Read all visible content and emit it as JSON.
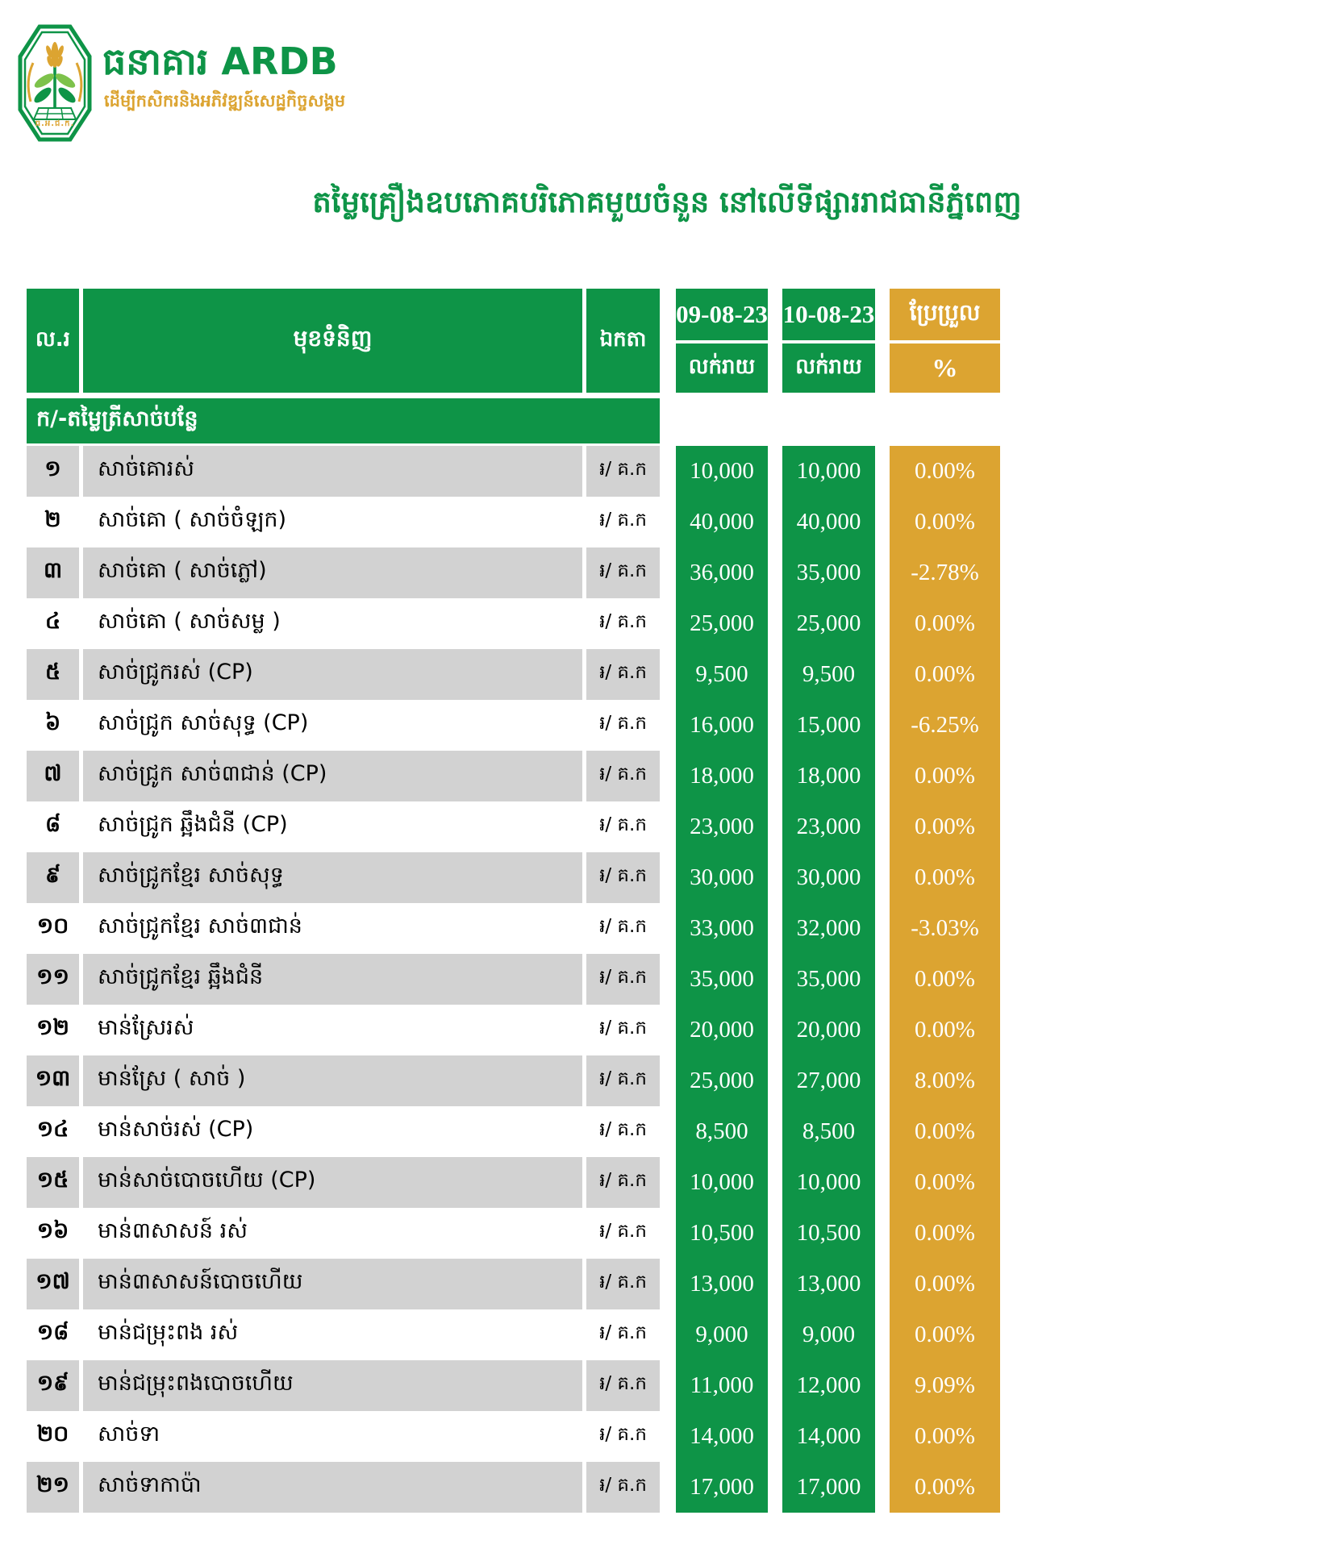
{
  "brand": {
    "full": "ធនាគារ ARDB",
    "tagline": "ដើម្បីកសិករនិងអភិវឌ្ឍន៍សេដ្ឋកិច្ចសង្គម",
    "emblem_abbr": "ធ.អ.ជ.ក."
  },
  "title": "តម្លៃគ្រឿងឧបភោគបរិភោគមួយចំនួន នៅលើទីផ្សាររាជធានីភ្នំពេញ",
  "colors": {
    "green": "#0E9447",
    "gold": "#DCA431",
    "row_grey": "#D2D2D2"
  },
  "table": {
    "headers": {
      "no": "ល.រ",
      "item": "មុខទំនិញ",
      "unit": "ឯកតា",
      "date1": "09-08-23",
      "date2": "10-08-23",
      "retail": "លក់រាយ",
      "change": "ប្រែប្រួល",
      "percent": "%"
    },
    "section": "ក/-តម្លៃត្រីសាច់បន្លែ",
    "rows": [
      {
        "no": "១",
        "item": "សាច់គោរស់",
        "unit": "៛/ គ.ក",
        "p1": "10,000",
        "p2": "10,000",
        "chg": "0.00%"
      },
      {
        "no": "២",
        "item": "សាច់គោ ( សាច់ចំឡក)",
        "unit": "៛/ គ.ក",
        "p1": "40,000",
        "p2": "40,000",
        "chg": "0.00%"
      },
      {
        "no": "៣",
        "item": "សាច់គោ ( សាច់ភ្លៅ)",
        "unit": "៛/ គ.ក",
        "p1": "36,000",
        "p2": "35,000",
        "chg": "-2.78%"
      },
      {
        "no": "៤",
        "item": "សាច់គោ ( សាច់សម្ល )",
        "unit": "៛/ គ.ក",
        "p1": "25,000",
        "p2": "25,000",
        "chg": "0.00%"
      },
      {
        "no": "៥",
        "item": "សាច់ជ្រូករស់ (CP)",
        "unit": "៛/ គ.ក",
        "p1": "9,500",
        "p2": "9,500",
        "chg": "0.00%"
      },
      {
        "no": "៦",
        "item": "សាច់ជ្រូក សាច់សុទ្ធ (CP)",
        "unit": "៛/ គ.ក",
        "p1": "16,000",
        "p2": "15,000",
        "chg": "-6.25%"
      },
      {
        "no": "៧",
        "item": "សាច់ជ្រូក សាច់៣ជាន់ (CP)",
        "unit": "៛/ គ.ក",
        "p1": "18,000",
        "p2": "18,000",
        "chg": "0.00%"
      },
      {
        "no": "៨",
        "item": "សាច់ជ្រូក ឆ្អឹងជំនី (CP)",
        "unit": "៛/ គ.ក",
        "p1": "23,000",
        "p2": "23,000",
        "chg": "0.00%"
      },
      {
        "no": "៩",
        "item": "សាច់ជ្រូកខ្មែរ សាច់សុទ្ធ",
        "unit": "៛/ គ.ក",
        "p1": "30,000",
        "p2": "30,000",
        "chg": "0.00%"
      },
      {
        "no": "១០",
        "item": "សាច់ជ្រូកខ្មែរ សាច់៣ជាន់",
        "unit": "៛/ គ.ក",
        "p1": "33,000",
        "p2": "32,000",
        "chg": "-3.03%"
      },
      {
        "no": "១១",
        "item": "សាច់ជ្រូកខ្មែរ ឆ្អឹងជំនី",
        "unit": "៛/ គ.ក",
        "p1": "35,000",
        "p2": "35,000",
        "chg": "0.00%"
      },
      {
        "no": "១២",
        "item": "មាន់ស្រែរស់",
        "unit": "៛/ គ.ក",
        "p1": "20,000",
        "p2": "20,000",
        "chg": "0.00%"
      },
      {
        "no": "១៣",
        "item": "មាន់ស្រែ ( សាច់ )",
        "unit": "៛/ គ.ក",
        "p1": "25,000",
        "p2": "27,000",
        "chg": "8.00%"
      },
      {
        "no": "១៤",
        "item": "មាន់សាច់រស់ (CP)",
        "unit": "៛/ គ.ក",
        "p1": "8,500",
        "p2": "8,500",
        "chg": "0.00%"
      },
      {
        "no": "១៥",
        "item": "មាន់សាច់បោចហើយ (CP)",
        "unit": "៛/ គ.ក",
        "p1": "10,000",
        "p2": "10,000",
        "chg": "0.00%"
      },
      {
        "no": "១៦",
        "item": "មាន់៣សាសន៍ រស់",
        "unit": "៛/ គ.ក",
        "p1": "10,500",
        "p2": "10,500",
        "chg": "0.00%"
      },
      {
        "no": "១៧",
        "item": "មាន់៣សាសន៍បោចហើយ",
        "unit": "៛/ គ.ក",
        "p1": "13,000",
        "p2": "13,000",
        "chg": "0.00%"
      },
      {
        "no": "១៨",
        "item": "មាន់ជម្រុះពង រស់",
        "unit": "៛/ គ.ក",
        "p1": "9,000",
        "p2": "9,000",
        "chg": "0.00%"
      },
      {
        "no": "១៩",
        "item": "មាន់ជម្រុះពងបោចហើយ",
        "unit": "៛/ គ.ក",
        "p1": "11,000",
        "p2": "12,000",
        "chg": "9.09%"
      },
      {
        "no": "២០",
        "item": "សាច់ទា",
        "unit": "៛/ គ.ក",
        "p1": "14,000",
        "p2": "14,000",
        "chg": "0.00%"
      },
      {
        "no": "២១",
        "item": "សាច់ទាកាប៉ា",
        "unit": "៛/ គ.ក",
        "p1": "17,000",
        "p2": "17,000",
        "chg": "0.00%"
      }
    ]
  }
}
